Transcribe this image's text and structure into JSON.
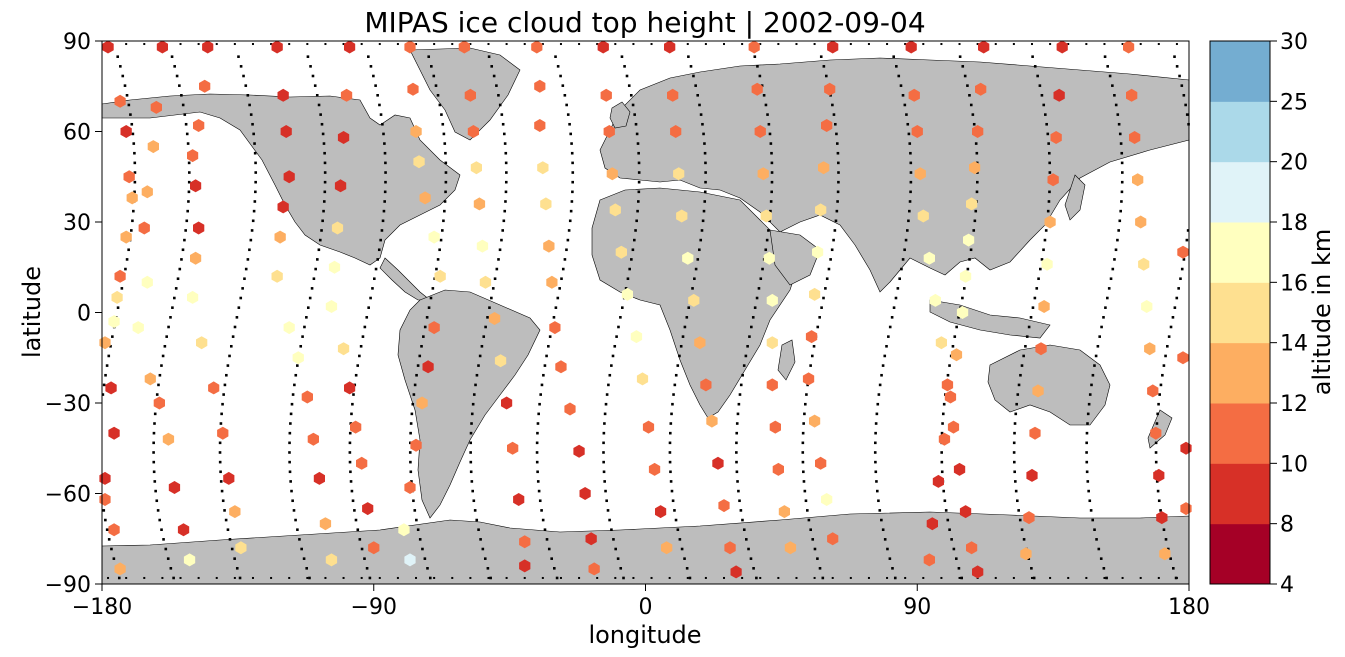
{
  "chart_data": {
    "type": "scatter",
    "title": "MIPAS ice cloud top height | 2002-09-04",
    "xlabel": "longitude",
    "ylabel": "latitude",
    "xlim": [
      -180,
      180
    ],
    "ylim": [
      -90,
      90
    ],
    "xticks": [
      -180,
      -90,
      0,
      90,
      180
    ],
    "yticks": [
      -90,
      -60,
      -30,
      0,
      30,
      60,
      90
    ],
    "grid": false,
    "colorbar": {
      "label": "altitude in km",
      "boundaries": [
        4,
        8,
        10,
        12,
        14,
        16,
        18,
        20,
        25,
        30
      ],
      "colors": [
        "#a50026",
        "#d73027",
        "#f46d43",
        "#fdae61",
        "#fee090",
        "#ffffbf",
        "#e0f3f8",
        "#abd9e9",
        "#74add1",
        "#313695"
      ],
      "tick_labels": [
        "4",
        "8",
        "10",
        "12",
        "14",
        "16",
        "18",
        "20",
        "25",
        "30"
      ]
    },
    "series": [
      {
        "marker": "hexagon",
        "points": [
          [
            -178,
            88,
            9
          ],
          [
            -174,
            70,
            10
          ],
          [
            -172,
            60,
            8
          ],
          [
            -171,
            45,
            11
          ],
          [
            -170,
            38,
            12
          ],
          [
            -172,
            25,
            13
          ],
          [
            -174,
            12,
            11
          ],
          [
            -175,
            5,
            15
          ],
          [
            -176,
            -3,
            16
          ],
          [
            -179,
            -10,
            13
          ],
          [
            -177,
            -25,
            8
          ],
          [
            -176,
            -40,
            8
          ],
          [
            -179,
            -55,
            9
          ],
          [
            -179,
            -62,
            10
          ],
          [
            -176,
            -72,
            11
          ],
          [
            -174,
            -85,
            12
          ],
          [
            -160,
            88,
            9
          ],
          [
            -162,
            68,
            11
          ],
          [
            -163,
            55,
            12
          ],
          [
            -165,
            40,
            13
          ],
          [
            -166,
            28,
            10
          ],
          [
            -165,
            10,
            16
          ],
          [
            -168,
            -5,
            16
          ],
          [
            -164,
            -22,
            13
          ],
          [
            -161,
            -30,
            11
          ],
          [
            -158,
            -42,
            12
          ],
          [
            -156,
            -58,
            8
          ],
          [
            -153,
            -72,
            8
          ],
          [
            -151,
            -82,
            16
          ],
          [
            -145,
            88,
            8
          ],
          [
            -146,
            75,
            11
          ],
          [
            -148,
            62,
            10
          ],
          [
            -150,
            52,
            11
          ],
          [
            -149,
            42,
            9
          ],
          [
            -148,
            28,
            9
          ],
          [
            -149,
            18,
            13
          ],
          [
            -150,
            5,
            16
          ],
          [
            -147,
            -10,
            15
          ],
          [
            -143,
            -25,
            11
          ],
          [
            -140,
            -40,
            10
          ],
          [
            -138,
            -55,
            8
          ],
          [
            -136,
            -66,
            12
          ],
          [
            -134,
            -78,
            15
          ],
          [
            -122,
            88,
            9
          ],
          [
            -120,
            72,
            8
          ],
          [
            -119,
            60,
            9
          ],
          [
            -118,
            45,
            8
          ],
          [
            -120,
            35,
            9
          ],
          [
            -121,
            25,
            13
          ],
          [
            -122,
            12,
            14
          ],
          [
            -118,
            -5,
            16
          ],
          [
            -115,
            -15,
            16
          ],
          [
            -112,
            -28,
            11
          ],
          [
            -110,
            -42,
            11
          ],
          [
            -108,
            -55,
            9
          ],
          [
            -106,
            -70,
            12
          ],
          [
            -104,
            -82,
            14
          ],
          [
            -98,
            88,
            8
          ],
          [
            -99,
            72,
            10
          ],
          [
            -100,
            58,
            9
          ],
          [
            -101,
            42,
            8
          ],
          [
            -102,
            28,
            14
          ],
          [
            -103,
            15,
            16
          ],
          [
            -104,
            2,
            16
          ],
          [
            -100,
            -12,
            15
          ],
          [
            -98,
            -25,
            8
          ],
          [
            -96,
            -38,
            11
          ],
          [
            -94,
            -50,
            10
          ],
          [
            -92,
            -65,
            8
          ],
          [
            -90,
            -78,
            11
          ],
          [
            -78,
            88,
            11
          ],
          [
            -77,
            74,
            10
          ],
          [
            -76,
            60,
            12
          ],
          [
            -75,
            50,
            14
          ],
          [
            -73,
            38,
            13
          ],
          [
            -70,
            25,
            16
          ],
          [
            -68,
            12,
            15
          ],
          [
            -70,
            -5,
            10
          ],
          [
            -72,
            -18,
            9
          ],
          [
            -74,
            -30,
            12
          ],
          [
            -76,
            -44,
            11
          ],
          [
            -78,
            -58,
            10
          ],
          [
            -80,
            -72,
            16
          ],
          [
            -78,
            -82,
            19
          ],
          [
            -60,
            88,
            10
          ],
          [
            -58,
            72,
            11
          ],
          [
            -57,
            60,
            10
          ],
          [
            -56,
            48,
            14
          ],
          [
            -55,
            36,
            13
          ],
          [
            -54,
            22,
            16
          ],
          [
            -53,
            10,
            15
          ],
          [
            -50,
            -2,
            13
          ],
          [
            -48,
            -16,
            14
          ],
          [
            -46,
            -30,
            9
          ],
          [
            -44,
            -45,
            10
          ],
          [
            -42,
            -62,
            9
          ],
          [
            -40,
            -76,
            11
          ],
          [
            -40,
            -84,
            9
          ],
          [
            -36,
            88,
            11
          ],
          [
            -35,
            75,
            10
          ],
          [
            -35,
            62,
            11
          ],
          [
            -34,
            48,
            15
          ],
          [
            -33,
            36,
            14
          ],
          [
            -32,
            22,
            12
          ],
          [
            -31,
            10,
            13
          ],
          [
            -30,
            -5,
            10
          ],
          [
            -28,
            -18,
            11
          ],
          [
            -25,
            -32,
            10
          ],
          [
            -22,
            -46,
            9
          ],
          [
            -20,
            -60,
            8
          ],
          [
            -18,
            -75,
            9
          ],
          [
            -17,
            -85,
            10
          ],
          [
            -14,
            88,
            8
          ],
          [
            -13,
            72,
            11
          ],
          [
            -12,
            60,
            10
          ],
          [
            -11,
            46,
            12
          ],
          [
            -10,
            34,
            15
          ],
          [
            -8,
            20,
            15
          ],
          [
            -6,
            6,
            16
          ],
          [
            -3,
            -8,
            16
          ],
          [
            -1,
            -22,
            14
          ],
          [
            1,
            -38,
            11
          ],
          [
            3,
            -52,
            10
          ],
          [
            5,
            -66,
            9
          ],
          [
            7,
            -78,
            12
          ],
          [
            8,
            88,
            9
          ],
          [
            9,
            72,
            10
          ],
          [
            10,
            60,
            11
          ],
          [
            11,
            46,
            15
          ],
          [
            12,
            32,
            14
          ],
          [
            14,
            18,
            16
          ],
          [
            16,
            4,
            15
          ],
          [
            18,
            -10,
            13
          ],
          [
            20,
            -24,
            11
          ],
          [
            22,
            -36,
            12
          ],
          [
            24,
            -50,
            9
          ],
          [
            26,
            -64,
            10
          ],
          [
            28,
            -78,
            11
          ],
          [
            30,
            -86,
            8
          ],
          [
            36,
            88,
            10
          ],
          [
            37,
            74,
            11
          ],
          [
            38,
            60,
            10
          ],
          [
            39,
            46,
            12
          ],
          [
            40,
            32,
            15
          ],
          [
            41,
            18,
            16
          ],
          [
            42,
            4,
            17
          ],
          [
            42,
            -10,
            14
          ],
          [
            42,
            -24,
            11
          ],
          [
            43,
            -38,
            11
          ],
          [
            44,
            -52,
            10
          ],
          [
            46,
            -66,
            12
          ],
          [
            48,
            -78,
            13
          ],
          [
            62,
            88,
            8
          ],
          [
            61,
            74,
            11
          ],
          [
            60,
            62,
            10
          ],
          [
            59,
            48,
            12
          ],
          [
            58,
            34,
            14
          ],
          [
            57,
            20,
            16
          ],
          [
            56,
            6,
            15
          ],
          [
            55,
            -8,
            10
          ],
          [
            54,
            -22,
            11
          ],
          [
            56,
            -36,
            12
          ],
          [
            58,
            -50,
            10
          ],
          [
            60,
            -62,
            17
          ],
          [
            62,
            -75,
            11
          ],
          [
            88,
            88,
            9
          ],
          [
            89,
            72,
            10
          ],
          [
            90,
            60,
            11
          ],
          [
            91,
            46,
            12
          ],
          [
            92,
            32,
            15
          ],
          [
            94,
            18,
            16
          ],
          [
            96,
            4,
            17
          ],
          [
            98,
            -10,
            14
          ],
          [
            100,
            -24,
            11
          ],
          [
            102,
            -38,
            10
          ],
          [
            104,
            -52,
            9
          ],
          [
            106,
            -66,
            8
          ],
          [
            108,
            -78,
            11
          ],
          [
            110,
            -86,
            9
          ],
          [
            112,
            88,
            9
          ],
          [
            111,
            74,
            10
          ],
          [
            110,
            60,
            11
          ],
          [
            109,
            48,
            12
          ],
          [
            108,
            36,
            15
          ],
          [
            107,
            24,
            16
          ],
          [
            106,
            12,
            17
          ],
          [
            105,
            0,
            16
          ],
          [
            103,
            -14,
            13
          ],
          [
            101,
            -28,
            11
          ],
          [
            99,
            -42,
            10
          ],
          [
            97,
            -56,
            9
          ],
          [
            95,
            -70,
            8
          ],
          [
            94,
            -82,
            10
          ],
          [
            138,
            88,
            8
          ],
          [
            137,
            72,
            9
          ],
          [
            136,
            58,
            11
          ],
          [
            135,
            44,
            10
          ],
          [
            134,
            30,
            12
          ],
          [
            133,
            16,
            16
          ],
          [
            132,
            2,
            13
          ],
          [
            131,
            -12,
            11
          ],
          [
            130,
            -26,
            12
          ],
          [
            129,
            -40,
            10
          ],
          [
            128,
            -54,
            9
          ],
          [
            127,
            -68,
            11
          ],
          [
            126,
            -80,
            12
          ],
          [
            160,
            88,
            11
          ],
          [
            161,
            72,
            10
          ],
          [
            162,
            58,
            11
          ],
          [
            163,
            44,
            12
          ],
          [
            164,
            30,
            13
          ],
          [
            165,
            16,
            15
          ],
          [
            166,
            2,
            16
          ],
          [
            167,
            -12,
            13
          ],
          [
            168,
            -26,
            11
          ],
          [
            169,
            -40,
            10
          ],
          [
            170,
            -54,
            9
          ],
          [
            171,
            -68,
            8
          ],
          [
            172,
            -80,
            12
          ],
          [
            178,
            20,
            11
          ],
          [
            178,
            -15,
            11
          ],
          [
            179,
            -45,
            9
          ],
          [
            179,
            -65,
            10
          ]
        ]
      }
    ],
    "orbit_tracks": true
  }
}
